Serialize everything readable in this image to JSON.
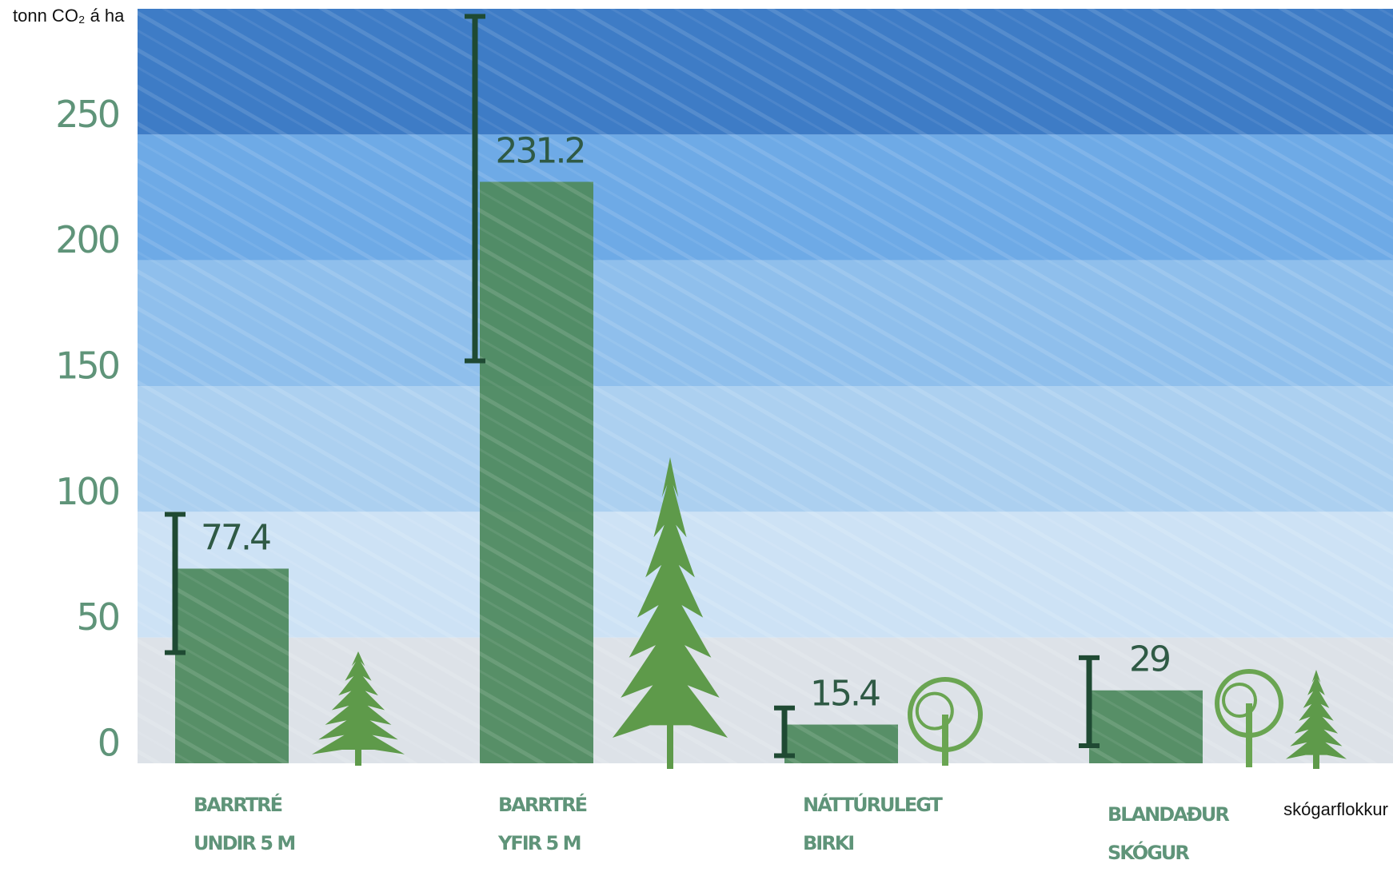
{
  "chart_data": {
    "type": "bar",
    "y_label": "tonn CO₂ á ha",
    "x_label": "skógarflokkur",
    "categories": [
      [
        "BARRTRÉ",
        "UNDIR 5 M"
      ],
      [
        "BARRTRÉ",
        "YFIR 5 M"
      ],
      [
        "NÁTTÚRULEGT",
        "BIRKI"
      ],
      [
        "BLANDAÐUR",
        "SKÓGUR"
      ]
    ],
    "values": [
      77.4,
      231.2,
      15.4,
      29
    ],
    "error_bars": [
      [
        44,
        99
      ],
      [
        160,
        297
      ],
      [
        3,
        22
      ],
      [
        7,
        42
      ]
    ],
    "color": "#4f8a60",
    "error_color": "#1f4a33",
    "band_colors": [
      "#dde2e8",
      "#cde2f5",
      "#acd0f0",
      "#8fbfec",
      "#6eaae6",
      "#3e7cc6"
    ],
    "ylim": [
      0,
      300
    ],
    "yticks": [
      0,
      50,
      100,
      150,
      200,
      250
    ]
  }
}
